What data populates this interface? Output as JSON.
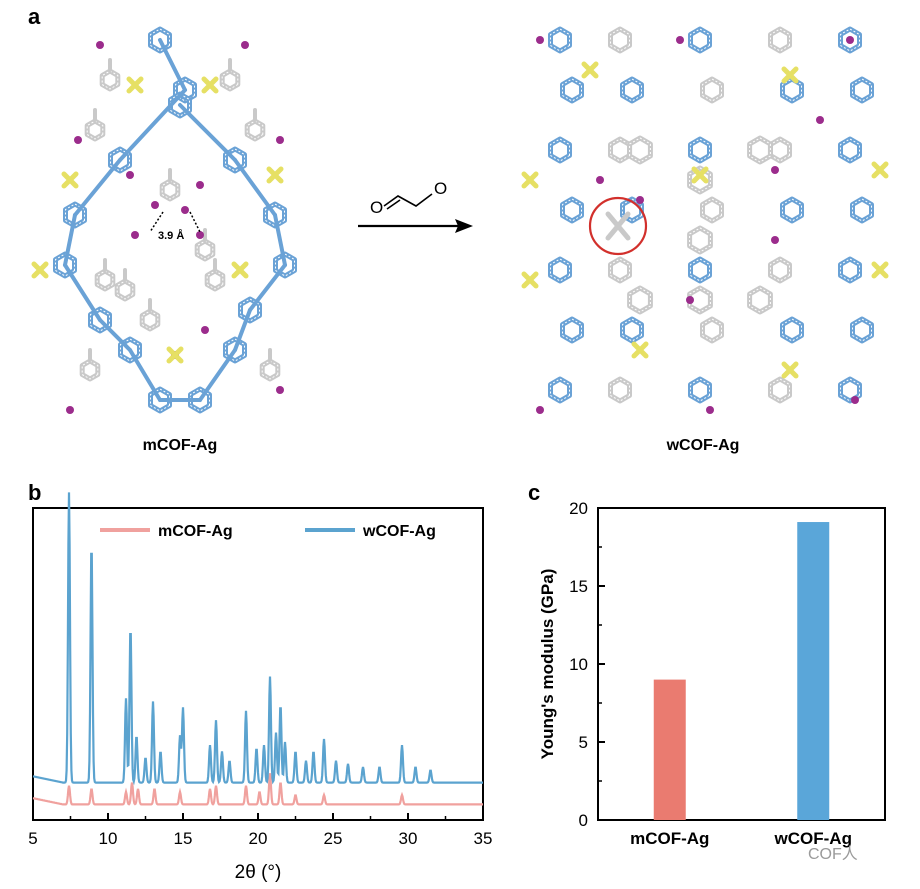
{
  "panels": {
    "a": {
      "letter": "a",
      "left_caption": "mCOF-Ag",
      "right_caption": "wCOF-Ag",
      "distance_label": "3.9 Å",
      "reagent_label": "O⁼╲╱⁼O",
      "atom_colors": {
        "framework": "#6aa2d6",
        "linker": "#c9c9c9",
        "silver_site": "#9b2c8c",
        "sulfur": "#e6e064",
        "highlight_circle": "#d2302c"
      }
    },
    "b": {
      "letter": "b"
    },
    "c": {
      "letter": "c"
    }
  },
  "chart_data": [
    {
      "type": "line",
      "xlabel": "2θ (°)",
      "ylabel": "",
      "xlim": [
        5,
        35
      ],
      "xticks": [
        "5",
        "10",
        "15",
        "20",
        "25",
        "30",
        "35"
      ],
      "legend_position": "top",
      "series": [
        {
          "name": "mCOF-Ag",
          "color": "#f0a19e",
          "baseline": 0.05,
          "peaks": [
            [
              7.4,
              0.06
            ],
            [
              8.9,
              0.05
            ],
            [
              11.2,
              0.04
            ],
            [
              11.6,
              0.07
            ],
            [
              12.0,
              0.05
            ],
            [
              13.1,
              0.05
            ],
            [
              14.8,
              0.04
            ],
            [
              16.8,
              0.05
            ],
            [
              17.2,
              0.06
            ],
            [
              19.2,
              0.06
            ],
            [
              20.1,
              0.04
            ],
            [
              20.8,
              0.1
            ],
            [
              21.5,
              0.07
            ],
            [
              22.5,
              0.03
            ],
            [
              24.4,
              0.03
            ],
            [
              29.6,
              0.03
            ]
          ]
        },
        {
          "name": "wCOF-Ag",
          "color": "#5ba3cf",
          "baseline": 0.12,
          "peaks": [
            [
              7.4,
              0.93
            ],
            [
              8.9,
              0.77
            ],
            [
              11.2,
              0.27
            ],
            [
              11.5,
              0.5
            ],
            [
              11.9,
              0.15
            ],
            [
              12.5,
              0.08
            ],
            [
              13.0,
              0.26
            ],
            [
              13.5,
              0.1
            ],
            [
              14.8,
              0.15
            ],
            [
              15.0,
              0.24
            ],
            [
              16.8,
              0.12
            ],
            [
              17.2,
              0.2
            ],
            [
              17.6,
              0.1
            ],
            [
              18.1,
              0.07
            ],
            [
              19.2,
              0.23
            ],
            [
              19.9,
              0.11
            ],
            [
              20.4,
              0.12
            ],
            [
              20.8,
              0.34
            ],
            [
              21.2,
              0.16
            ],
            [
              21.5,
              0.25
            ],
            [
              21.8,
              0.13
            ],
            [
              22.5,
              0.1
            ],
            [
              23.2,
              0.07
            ],
            [
              23.7,
              0.1
            ],
            [
              24.4,
              0.14
            ],
            [
              25.2,
              0.07
            ],
            [
              26.0,
              0.06
            ],
            [
              27.0,
              0.05
            ],
            [
              28.1,
              0.05
            ],
            [
              29.6,
              0.12
            ],
            [
              30.5,
              0.05
            ],
            [
              31.5,
              0.04
            ]
          ]
        }
      ]
    },
    {
      "type": "bar",
      "categories": [
        "mCOF-Ag",
        "wCOF-Ag"
      ],
      "values": [
        9.0,
        19.1
      ],
      "colors": [
        "#ea7b70",
        "#5aa6d9"
      ],
      "xlabel": "",
      "ylabel": "Young's modulus (GPa)",
      "ylim": [
        0,
        20
      ],
      "yticks": [
        "0",
        "5",
        "10",
        "15",
        "20"
      ]
    }
  ],
  "watermark": "COF人"
}
